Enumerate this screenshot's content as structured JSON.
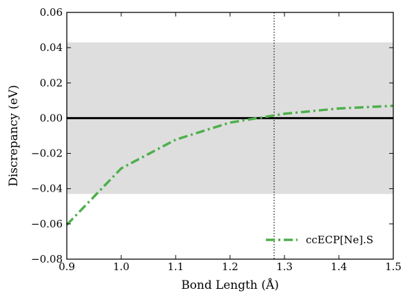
{
  "chart_data": {
    "type": "line",
    "title": "",
    "xlabel": "Bond Length (Å)",
    "ylabel": "Discrepancy (eV)",
    "xlim": [
      0.9,
      1.5
    ],
    "ylim": [
      -0.08,
      0.06
    ],
    "x_ticks": [
      0.9,
      1.0,
      1.1,
      1.2,
      1.3,
      1.4,
      1.5
    ],
    "x_tick_labels": [
      "0.9",
      "1.0",
      "1.1",
      "1.2",
      "1.3",
      "1.4",
      "1.5"
    ],
    "y_ticks": [
      -0.08,
      -0.06,
      -0.04,
      -0.02,
      0.0,
      0.02,
      0.04,
      0.06
    ],
    "y_tick_labels": [
      "−0.08",
      "−0.06",
      "−0.04",
      "−0.02",
      "0.00",
      "0.02",
      "0.04",
      "0.06"
    ],
    "grid": false,
    "shaded_band": {
      "ymin": -0.043,
      "ymax": 0.043,
      "color": "#dedede"
    },
    "reference_hline": {
      "y": 0.0,
      "color": "#000000"
    },
    "reference_vline": {
      "x": 1.281,
      "style": "dotted",
      "color": "#000000"
    },
    "legend_position": "bottom-right",
    "series": [
      {
        "name": "ccECP[Ne].S",
        "color": "#4daf4a",
        "style": "dashdot",
        "x": [
          0.9,
          1.0,
          1.1,
          1.2,
          1.25,
          1.3,
          1.4,
          1.5
        ],
        "y": [
          -0.0605,
          -0.0285,
          -0.0122,
          -0.0025,
          0.0,
          0.0025,
          0.0055,
          0.007
        ]
      }
    ]
  }
}
